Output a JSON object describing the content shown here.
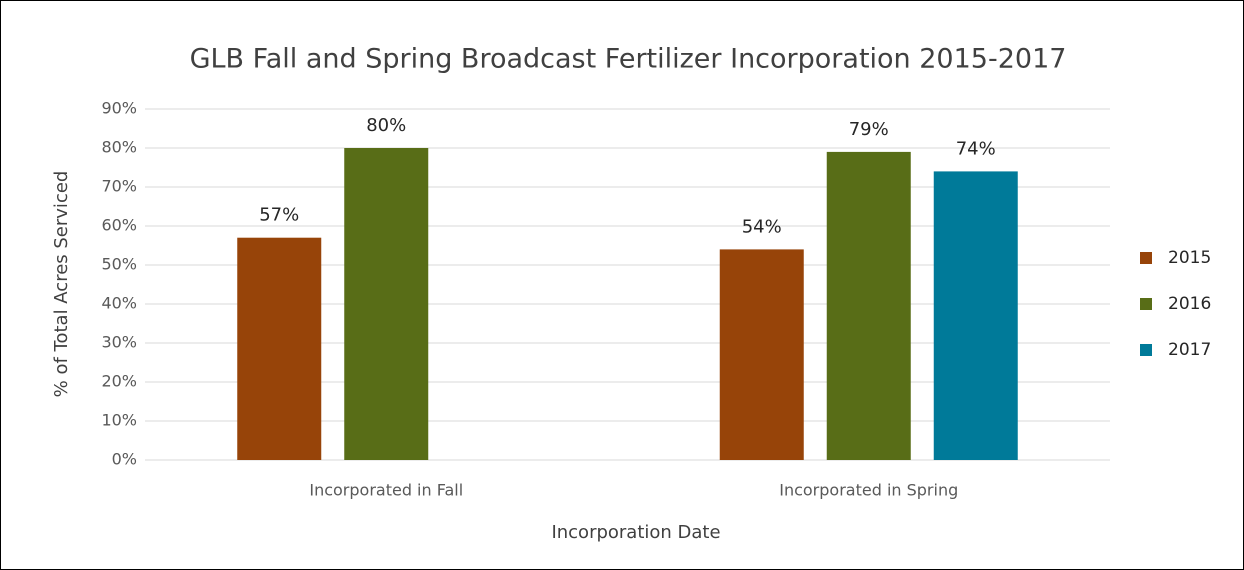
{
  "chart_data": {
    "type": "bar",
    "title": "GLB Fall and Spring Broadcast Fertilizer Incorporation 2015-2017",
    "x_label": "Incorporation Date",
    "y_label": "% of Total Acres Serviced",
    "categories": [
      "Incorporated in Fall",
      "Incorporated in Spring"
    ],
    "series": [
      {
        "name": "2015",
        "color": "#974409",
        "values": [
          57,
          54
        ],
        "value_labels": [
          "57%",
          "54%"
        ]
      },
      {
        "name": "2016",
        "color": "#586d17",
        "values": [
          80,
          79
        ],
        "value_labels": [
          "80%",
          "79%"
        ]
      },
      {
        "name": "2017",
        "color": "#007a99",
        "values": [
          null,
          74
        ],
        "value_labels": [
          null,
          "74%"
        ]
      }
    ],
    "ylim": [
      0,
      90
    ],
    "yticks": [
      {
        "value": 0,
        "label": "0%"
      },
      {
        "value": 10,
        "label": "10%"
      },
      {
        "value": 20,
        "label": "20%"
      },
      {
        "value": 30,
        "label": "30%"
      },
      {
        "value": 40,
        "label": "40%"
      },
      {
        "value": 50,
        "label": "50%"
      },
      {
        "value": 60,
        "label": "60%"
      },
      {
        "value": 70,
        "label": "70%"
      },
      {
        "value": 80,
        "label": "80%"
      },
      {
        "value": 90,
        "label": "90%"
      }
    ],
    "grid": true,
    "legend": "right"
  }
}
